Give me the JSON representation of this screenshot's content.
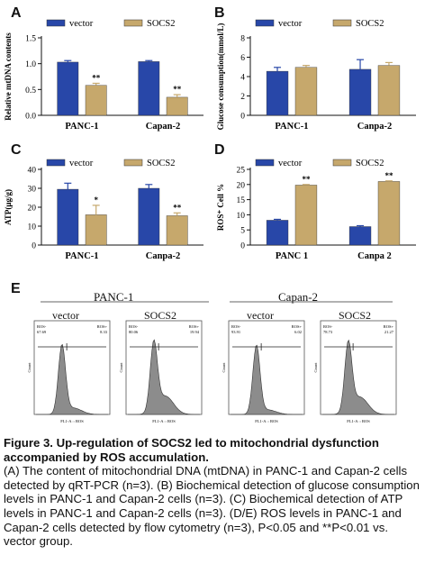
{
  "colors": {
    "vector": "#2847a8",
    "socs2": "#c6a86c",
    "histogram": "#8c8c8c"
  },
  "chart_data": [
    {
      "panel": "A",
      "type": "bar",
      "categories": [
        "PANC-1",
        "Capan-2"
      ],
      "series": [
        {
          "name": "vector",
          "values": [
            1.03,
            1.04
          ],
          "errors": [
            0.03,
            0.02
          ]
        },
        {
          "name": "SOCS2",
          "values": [
            0.58,
            0.35
          ],
          "errors": [
            0.04,
            0.05
          ],
          "sig": [
            "**",
            "**"
          ]
        }
      ],
      "ylabel": "Relative mtDNA contents",
      "ylim": [
        0.0,
        1.5
      ],
      "yticks": [
        "0.0",
        "0.5",
        "1.0",
        "1.5"
      ],
      "legend": "top"
    },
    {
      "panel": "B",
      "type": "bar",
      "categories": [
        "PANC-1",
        "Canpa-2"
      ],
      "series": [
        {
          "name": "vector",
          "values": [
            4.55,
            4.75
          ],
          "errors": [
            0.4,
            1.0
          ]
        },
        {
          "name": "SOCS2",
          "values": [
            4.95,
            5.15
          ],
          "errors": [
            0.2,
            0.3
          ]
        }
      ],
      "ylabel": "Glucose consumption(mmol/L)",
      "ylim": [
        0,
        8
      ],
      "yticks": [
        "0",
        "2",
        "4",
        "6",
        "8"
      ],
      "legend": "top"
    },
    {
      "panel": "C",
      "type": "bar",
      "categories": [
        "PANC-1",
        "Canpa-2"
      ],
      "series": [
        {
          "name": "vector",
          "values": [
            29.5,
            30.0
          ],
          "errors": [
            3.2,
            2.0
          ]
        },
        {
          "name": "SOCS2",
          "values": [
            16.0,
            15.5
          ],
          "errors": [
            5.0,
            1.5
          ],
          "sig": [
            "*",
            "**"
          ]
        }
      ],
      "ylabel": "ATP(μg/g)",
      "ylim": [
        0,
        40
      ],
      "yticks": [
        "0",
        "10",
        "20",
        "30",
        "40"
      ],
      "legend": "top"
    },
    {
      "panel": "D",
      "type": "bar",
      "categories": [
        "PANC 1",
        "Canpa 2"
      ],
      "series": [
        {
          "name": "vector",
          "values": [
            8.2,
            6.1
          ],
          "errors": [
            0.3,
            0.3
          ]
        },
        {
          "name": "SOCS2",
          "values": [
            19.8,
            21.0
          ],
          "errors": [
            0.2,
            0.2
          ],
          "sig": [
            "**",
            "**"
          ]
        }
      ],
      "ylabel": "ROS⁺ Cell %",
      "ylim": [
        0,
        25
      ],
      "yticks": [
        "0",
        "5",
        "10",
        "15",
        "20",
        "25"
      ],
      "legend": "top"
    }
  ],
  "flow": {
    "panel": "E",
    "groups": [
      {
        "title": "PANC-1",
        "conditions": [
          "vector",
          "SOCS2"
        ],
        "gates": [
          {
            "left": "67.69",
            "right": "8.33"
          },
          {
            "left": "80.06",
            "right": "19.94"
          }
        ]
      },
      {
        "title": "Capan-2",
        "conditions": [
          "vector",
          "SOCS2"
        ],
        "gates": [
          {
            "left": "93.91",
            "right": "6.02"
          },
          {
            "left": "78.73",
            "right": "21.27"
          }
        ]
      }
    ],
    "gate_labels": {
      "left": "ROS-",
      "right": "ROS+"
    },
    "xlabel": "FL1-A :: ROS",
    "ylabel": "Count"
  },
  "caption": {
    "heading": "Figure 3. Up-regulation of SOCS2 led to mitochondrial dysfunction accompanied by ROS accumulation.",
    "text": "(A) The content of mitochondrial DNA (mtDNA) in PANC-1 and Capan-2 cells detected by qRT-PCR (n=3). (B) Biochemical detection of glucose consumption levels in PANC-1 and Capan-2 cells (n=3). (C) Biochemical detection of ATP levels in PANC-1 and Capan-2 cells (n=3). (D/E) ROS levels in PANC-1 and Capan-2 cells detected by flow cytometry (n=3), P<0.05 and **P<0.01 vs. vector group."
  }
}
